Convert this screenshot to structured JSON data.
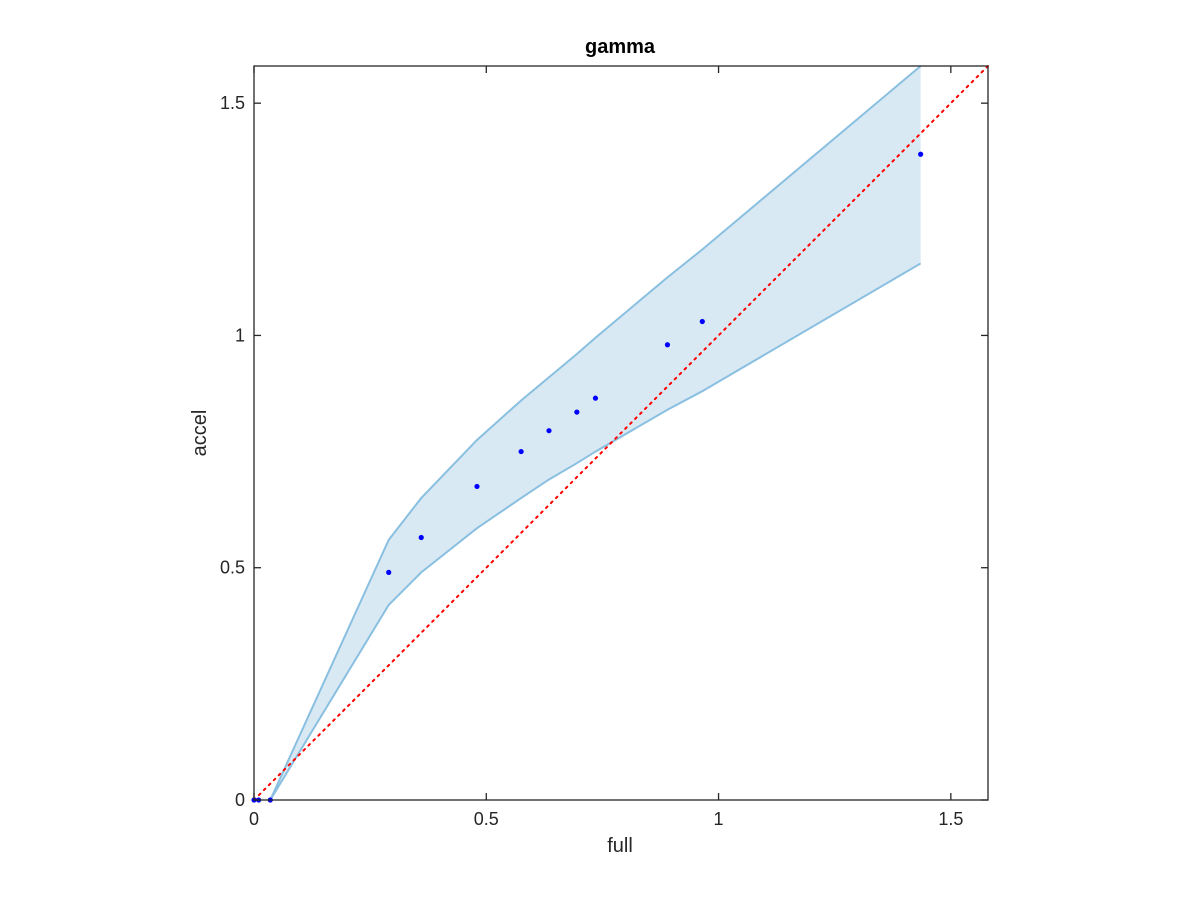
{
  "chart_data": {
    "type": "scatter",
    "title": "gamma",
    "xlabel": "full",
    "ylabel": "accel",
    "xlim": [
      0,
      1.58
    ],
    "ylim": [
      0,
      1.58
    ],
    "xticks": [
      0,
      0.5,
      1,
      1.5
    ],
    "xtick_labels": [
      "0",
      "0.5",
      "1",
      "1.5"
    ],
    "yticks": [
      0,
      0.5,
      1,
      1.5
    ],
    "ytick_labels": [
      "0",
      "0.5",
      "1",
      "1.5"
    ],
    "grid": false,
    "box": true,
    "colors": {
      "points": "#0000ff",
      "band_fill": "#d9e9f4",
      "band_edge": "#89bfe0",
      "reference": "#ff0000",
      "axes": "#262626"
    },
    "points": {
      "x": [
        0.0,
        0.01,
        0.035,
        0.29,
        0.36,
        0.48,
        0.575,
        0.635,
        0.695,
        0.735,
        0.89,
        0.965,
        1.435
      ],
      "y": [
        0.0,
        0.0,
        0.0,
        0.49,
        0.565,
        0.675,
        0.75,
        0.795,
        0.835,
        0.865,
        0.98,
        1.03,
        1.39
      ]
    },
    "band": {
      "x": [
        0.035,
        0.29,
        0.36,
        0.48,
        0.575,
        0.635,
        0.695,
        0.735,
        0.89,
        0.965,
        1.435
      ],
      "upper": [
        0.0,
        0.56,
        0.65,
        0.775,
        0.86,
        0.91,
        0.96,
        0.995,
        1.125,
        1.185,
        1.58
      ],
      "lower": [
        0.0,
        0.42,
        0.49,
        0.585,
        0.65,
        0.69,
        0.725,
        0.75,
        0.84,
        0.88,
        1.155
      ]
    },
    "reference_line": {
      "style": "dotted",
      "x": [
        0,
        1.58
      ],
      "y": [
        0,
        1.58
      ]
    }
  }
}
